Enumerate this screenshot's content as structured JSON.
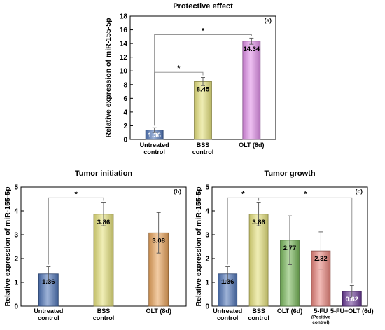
{
  "chart_data": [
    {
      "type": "bar",
      "title": "Protective effect",
      "panel_label": "(a)",
      "ylabel": "Relative expression of miR-155-5p",
      "ylim": [
        0,
        18
      ],
      "yticks": [
        0,
        2,
        4,
        6,
        8,
        10,
        12,
        14,
        16,
        18
      ],
      "grid": false,
      "categories": [
        [
          "Untreated",
          "control"
        ],
        [
          "BSS",
          "control"
        ],
        [
          "OLT (8d)"
        ]
      ],
      "values": [
        1.36,
        8.45,
        14.34
      ],
      "errors": [
        0.35,
        0.6,
        0.45
      ],
      "data_labels": [
        "1.36",
        "8.45",
        "14.34"
      ],
      "bar_colors": [
        "#4f74b8",
        "#e4e07a",
        "#e08ee8"
      ],
      "significance": [
        {
          "from": 0,
          "to": 2,
          "label": "*",
          "level": 15.3
        },
        {
          "from": 0,
          "to": 1,
          "label": "*",
          "level": 9.8
        }
      ]
    },
    {
      "type": "bar",
      "title": "Tumor initiation",
      "panel_label": "(b)",
      "ylabel": "Relative expression of miR-155-5p",
      "ylim": [
        0,
        5
      ],
      "yticks": [
        0,
        1,
        2,
        3,
        4,
        5
      ],
      "grid": false,
      "categories": [
        [
          "Untreated",
          "control"
        ],
        [
          "BSS",
          "control"
        ],
        [
          "OLT (8d)"
        ]
      ],
      "values": [
        1.36,
        3.86,
        3.08
      ],
      "errors": [
        0.3,
        0.48,
        0.85
      ],
      "data_labels": [
        "1.36",
        "3.86",
        "3.08"
      ],
      "bar_colors": [
        "#4f74b8",
        "#e4e07a",
        "#e8a25a"
      ],
      "significance": [
        {
          "from": 0,
          "to": 1,
          "label": "*",
          "level": 4.55
        }
      ]
    },
    {
      "type": "bar",
      "title": "Tumor growth",
      "panel_label": "(c)",
      "ylabel": "Relative expression of miR-155-5p",
      "ylim": [
        0,
        5
      ],
      "yticks": [
        0,
        1,
        2,
        3,
        4,
        5
      ],
      "grid": false,
      "categories": [
        [
          "Untreated",
          "control"
        ],
        [
          "BSS",
          "control"
        ],
        [
          "OLT (6d)"
        ],
        [
          "5-FU",
          "(Positive",
          "control)"
        ],
        [
          "5-FU+OLT (6d)"
        ]
      ],
      "values": [
        1.36,
        3.86,
        2.77,
        2.32,
        0.62
      ],
      "errors": [
        0.3,
        0.48,
        1.02,
        0.8,
        0.25
      ],
      "data_labels": [
        "1.36",
        "3.86",
        "2.77",
        "2.32",
        "0.62"
      ],
      "bar_colors": [
        "#4f74b8",
        "#e4e07a",
        "#78b85a",
        "#e8847c",
        "#6a3a96"
      ],
      "significance": [
        {
          "from": 0,
          "to": 1,
          "label": "*",
          "level": 4.55
        },
        {
          "from": 1,
          "to": 4,
          "label": "*",
          "level": 4.55
        }
      ]
    }
  ]
}
